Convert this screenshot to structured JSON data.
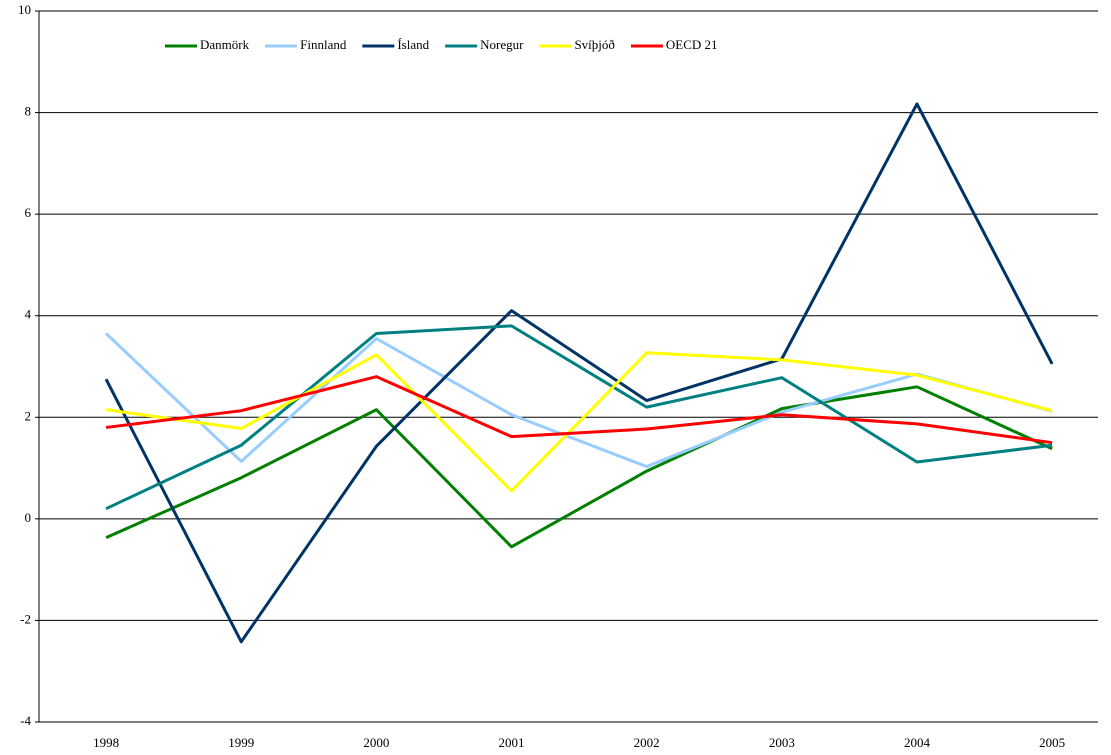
{
  "chart_data": {
    "type": "line",
    "categories": [
      "1998",
      "1999",
      "2000",
      "2001",
      "2002",
      "2003",
      "2004",
      "2005"
    ],
    "series": [
      {
        "name": "Danmörk",
        "color": "#008000",
        "values": [
          -0.37,
          0.81,
          2.15,
          -0.55,
          0.94,
          2.17,
          2.6,
          1.38
        ]
      },
      {
        "name": "Finnland",
        "color": "#99ccff",
        "values": [
          3.65,
          1.13,
          3.55,
          2.05,
          1.03,
          2.1,
          2.85,
          2.12
        ]
      },
      {
        "name": "Ísland",
        "color": "#003366",
        "values": [
          2.75,
          -2.42,
          1.43,
          4.1,
          2.33,
          3.15,
          8.17,
          3.05
        ]
      },
      {
        "name": "Noregur",
        "color": "#008080",
        "values": [
          0.2,
          1.45,
          3.65,
          3.8,
          2.2,
          2.78,
          1.12,
          1.45
        ]
      },
      {
        "name": "Svíþjóð",
        "color": "#ffff00",
        "values": [
          2.15,
          1.78,
          3.23,
          0.55,
          3.27,
          3.13,
          2.83,
          2.13
        ]
      },
      {
        "name": "OECD 21",
        "color": "#ff0000",
        "values": [
          1.8,
          2.13,
          2.8,
          1.62,
          1.77,
          2.05,
          1.87,
          1.5
        ]
      }
    ],
    "ylim": [
      -4,
      10
    ],
    "yticks": [
      -4,
      -2,
      0,
      2,
      4,
      6,
      8,
      10
    ],
    "grid": true,
    "legend": "top"
  }
}
